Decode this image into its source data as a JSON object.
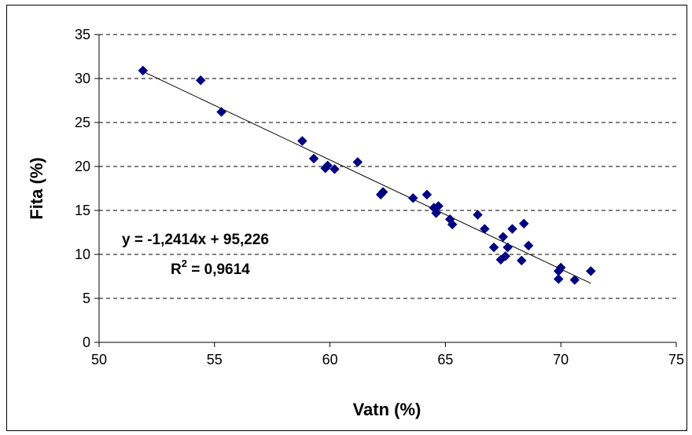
{
  "chart_data": {
    "type": "scatter",
    "xlabel": "Vatn (%)",
    "ylabel": "Fita (%)",
    "xlim": [
      50,
      75
    ],
    "ylim": [
      0,
      35
    ],
    "x_ticks": [
      "50",
      "55",
      "60",
      "65",
      "70",
      "75"
    ],
    "y_ticks": [
      "0",
      "5",
      "10",
      "15",
      "20",
      "25",
      "30",
      "35"
    ],
    "grid": "horizontal dashed",
    "marker": "diamond",
    "colors": {
      "marker": "#000080",
      "trendline": "#000000",
      "grid": "#000000",
      "frame": "#000000"
    },
    "points": [
      {
        "x": 51.9,
        "y": 30.9
      },
      {
        "x": 54.4,
        "y": 29.8
      },
      {
        "x": 55.3,
        "y": 26.2
      },
      {
        "x": 58.8,
        "y": 22.9
      },
      {
        "x": 59.3,
        "y": 20.9
      },
      {
        "x": 59.8,
        "y": 19.8
      },
      {
        "x": 59.9,
        "y": 20.1
      },
      {
        "x": 60.2,
        "y": 19.7
      },
      {
        "x": 61.2,
        "y": 20.5
      },
      {
        "x": 62.2,
        "y": 16.8
      },
      {
        "x": 62.3,
        "y": 17.1
      },
      {
        "x": 63.6,
        "y": 16.4
      },
      {
        "x": 64.2,
        "y": 16.8
      },
      {
        "x": 64.5,
        "y": 15.3
      },
      {
        "x": 64.6,
        "y": 14.7
      },
      {
        "x": 64.7,
        "y": 15.5
      },
      {
        "x": 65.2,
        "y": 14.0
      },
      {
        "x": 65.3,
        "y": 13.4
      },
      {
        "x": 66.4,
        "y": 14.5
      },
      {
        "x": 66.7,
        "y": 12.9
      },
      {
        "x": 67.1,
        "y": 10.8
      },
      {
        "x": 67.4,
        "y": 9.4
      },
      {
        "x": 67.5,
        "y": 12.0
      },
      {
        "x": 67.6,
        "y": 9.8
      },
      {
        "x": 67.7,
        "y": 10.8
      },
      {
        "x": 67.9,
        "y": 12.9
      },
      {
        "x": 68.3,
        "y": 9.3
      },
      {
        "x": 68.4,
        "y": 13.5
      },
      {
        "x": 68.6,
        "y": 11.0
      },
      {
        "x": 69.9,
        "y": 8.1
      },
      {
        "x": 69.9,
        "y": 7.2
      },
      {
        "x": 70.0,
        "y": 8.5
      },
      {
        "x": 70.6,
        "y": 7.1
      },
      {
        "x": 71.3,
        "y": 8.1
      }
    ],
    "trendline": {
      "slope": -1.2414,
      "intercept": 95.226,
      "x_range": [
        51.9,
        71.3
      ]
    },
    "equation_label": "y = -1,2414x + 95,226",
    "r2_label_prefix": "R",
    "r2_label_sup": "2",
    "r2_label_value": " = 0,9614"
  }
}
